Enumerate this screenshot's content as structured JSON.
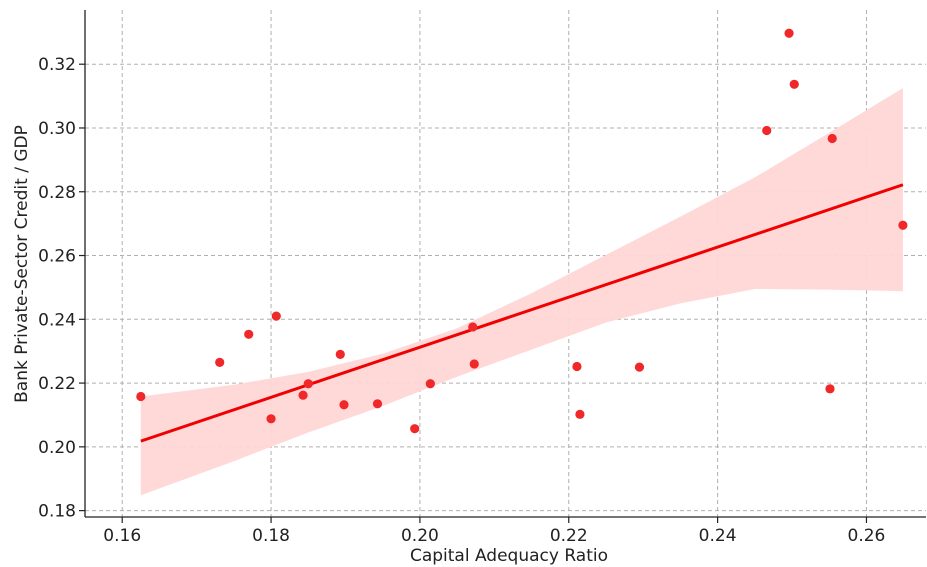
{
  "chart_data": {
    "type": "scatter",
    "xlabel": "Capital Adequacy Ratio",
    "ylabel": "Bank Private-Sector Credit / GDP",
    "xlim": [
      0.155,
      0.268
    ],
    "ylim": [
      0.178,
      0.337
    ],
    "x_ticks": [
      0.16,
      0.18,
      0.2,
      0.22,
      0.24,
      0.26
    ],
    "x_tick_labels": [
      "0.16",
      "0.18",
      "0.20",
      "0.22",
      "0.24",
      "0.26"
    ],
    "y_ticks": [
      0.18,
      0.2,
      0.22,
      0.24,
      0.26,
      0.28,
      0.3,
      0.32
    ],
    "y_tick_labels": [
      "0.18",
      "0.20",
      "0.22",
      "0.24",
      "0.26",
      "0.28",
      "0.30",
      "0.32"
    ],
    "grid": true,
    "colors": {
      "points": "#f0282a",
      "line": "#f00000",
      "band": "#ffd6d6"
    },
    "points": [
      {
        "x": 0.1625,
        "y": 0.2158
      },
      {
        "x": 0.1731,
        "y": 0.2265
      },
      {
        "x": 0.177,
        "y": 0.2353
      },
      {
        "x": 0.18,
        "y": 0.2088
      },
      {
        "x": 0.1807,
        "y": 0.241
      },
      {
        "x": 0.1843,
        "y": 0.2162
      },
      {
        "x": 0.185,
        "y": 0.2198
      },
      {
        "x": 0.1893,
        "y": 0.229
      },
      {
        "x": 0.1898,
        "y": 0.2132
      },
      {
        "x": 0.1943,
        "y": 0.2135
      },
      {
        "x": 0.1993,
        "y": 0.2057
      },
      {
        "x": 0.2014,
        "y": 0.2198
      },
      {
        "x": 0.2071,
        "y": 0.2376
      },
      {
        "x": 0.2073,
        "y": 0.226
      },
      {
        "x": 0.2211,
        "y": 0.2252
      },
      {
        "x": 0.2215,
        "y": 0.2102
      },
      {
        "x": 0.2295,
        "y": 0.225
      },
      {
        "x": 0.2466,
        "y": 0.2992
      },
      {
        "x": 0.2496,
        "y": 0.3297
      },
      {
        "x": 0.2503,
        "y": 0.3137
      },
      {
        "x": 0.2551,
        "y": 0.2182
      },
      {
        "x": 0.2554,
        "y": 0.2967
      },
      {
        "x": 0.2649,
        "y": 0.2695
      }
    ],
    "regression_line": {
      "x": [
        0.1625,
        0.2649
      ],
      "y": [
        0.2018,
        0.2822
      ]
    },
    "confidence_band": {
      "x": [
        0.1625,
        0.175,
        0.185,
        0.195,
        0.205,
        0.215,
        0.225,
        0.235,
        0.245,
        0.255,
        0.2649
      ],
      "upper": [
        0.2158,
        0.2195,
        0.2235,
        0.2292,
        0.2372,
        0.2482,
        0.2602,
        0.2722,
        0.2845,
        0.2985,
        0.3125
      ],
      "lower": [
        0.1848,
        0.1955,
        0.2045,
        0.2128,
        0.222,
        0.2305,
        0.239,
        0.245,
        0.2495,
        0.2493,
        0.2488
      ]
    }
  }
}
